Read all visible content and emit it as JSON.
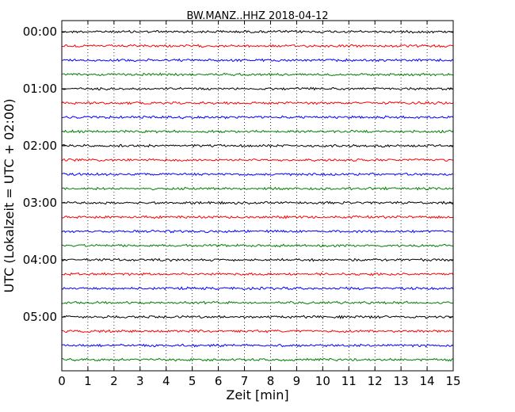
{
  "chart_data": {
    "type": "line",
    "title": "BW.MANZ..HHZ 2018-04-12",
    "xlabel": "Zeit  [min]",
    "ylabel": "UTC (Lokalzeit = UTC + 02:00)",
    "xlim": [
      0,
      15
    ],
    "x_ticks": [
      "0",
      "1",
      "2",
      "3",
      "4",
      "5",
      "6",
      "7",
      "8",
      "9",
      "10",
      "11",
      "12",
      "13",
      "14",
      "15"
    ],
    "y_ticks": [
      {
        "label": "00:00",
        "row": 0
      },
      {
        "label": "01:00",
        "row": 4
      },
      {
        "label": "02:00",
        "row": 8
      },
      {
        "label": "03:00",
        "row": 12
      },
      {
        "label": "04:00",
        "row": 16
      },
      {
        "label": "05:00",
        "row": 20
      }
    ],
    "row_minutes": 15,
    "rows": 24,
    "grid_x": true,
    "trace_colors": [
      "#000000",
      "#ff0000",
      "#0000ff",
      "#008000"
    ],
    "frame_color": "#000000",
    "grid_color": "#000000"
  }
}
